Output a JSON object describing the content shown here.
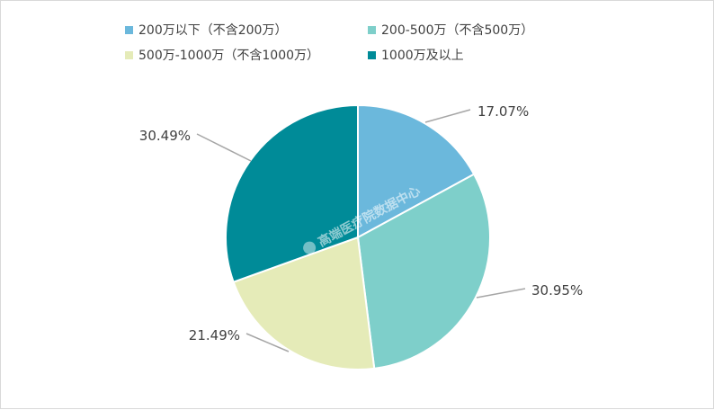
{
  "chart_data": {
    "type": "pie",
    "categories": [
      "200万以下（不含200万）",
      "200-500万（不含500万）",
      "500万-1000万（不含1000万）",
      "1000万及以上"
    ],
    "values": [
      17.07,
      30.95,
      21.49,
      30.49
    ],
    "data_labels": [
      "17.07%",
      "30.95%",
      "21.49%",
      "30.49%"
    ],
    "colors": [
      "#6bb8dc",
      "#7ecfca",
      "#e5ebb8",
      "#008b98"
    ],
    "legend_position": "top-left",
    "start_angle": "12 o'clock",
    "direction": "clockwise"
  },
  "watermark": {
    "text": "高端医疗院数据中心"
  }
}
